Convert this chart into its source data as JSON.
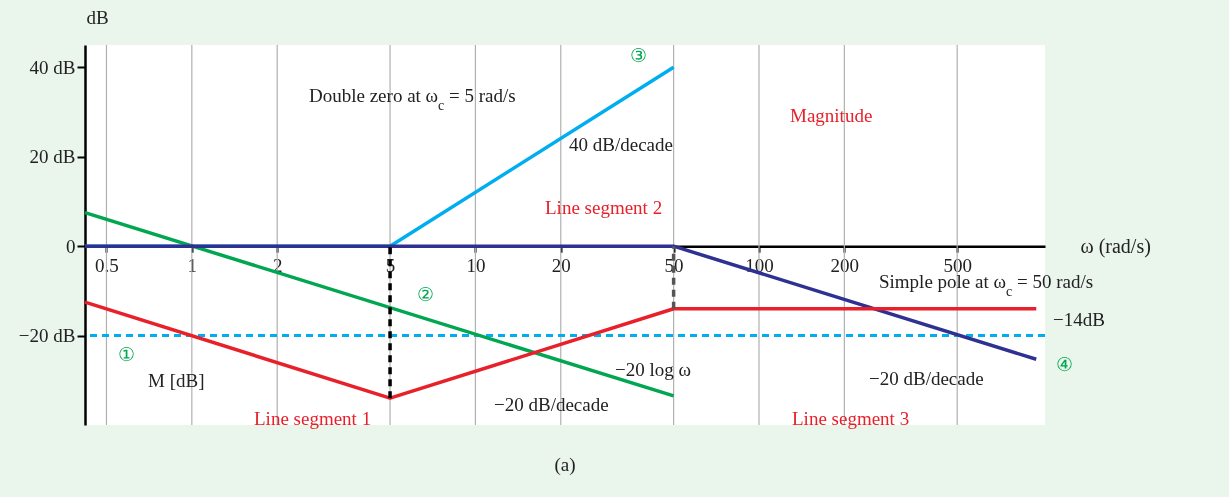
{
  "chart_data": {
    "type": "line",
    "xlabel": "ω (rad/s)",
    "ylabel": "dB",
    "log": "x",
    "series": [
      {
        "color": "#00aeef",
        "x": [
          0.42,
          5,
          50
        ],
        "values": [
          0,
          0,
          40
        ]
      },
      {
        "color": "#00a650",
        "x": [
          0.42,
          50
        ],
        "values": [
          7.5,
          -33.5
        ]
      },
      {
        "color": "#2e3192",
        "x": [
          0.42,
          50,
          950
        ],
        "values": [
          0,
          0,
          -25.3
        ]
      },
      {
        "color": "#e8202a",
        "x": [
          0.42,
          5,
          50,
          950
        ],
        "values": [
          -12.5,
          -34,
          -14,
          -14
        ]
      },
      {
        "color": "#000000",
        "x": [
          5,
          5
        ],
        "values": [
          -34,
          0
        ],
        "line_style": "dashed"
      },
      {
        "color": "#555555",
        "x": [
          50,
          50
        ],
        "values": [
          -14,
          0
        ],
        "line_style": "dashed"
      }
    ],
    "xlim": [
      0.42,
      1020
    ],
    "xticks": [
      0.5,
      1,
      2,
      5,
      10,
      20,
      50,
      100,
      200,
      500
    ],
    "ylim": [
      -40,
      45
    ],
    "yticks": [
      {
        "value": 40,
        "label": "40 dB"
      },
      {
        "value": 20,
        "label": "20 dB"
      },
      {
        "value": 0,
        "label": "0"
      },
      {
        "value": -20,
        "label": "−20 dB"
      }
    ],
    "grid": "x",
    "marker": "none",
    "ref_lines": [
      {
        "axis": "y",
        "value": -20,
        "color": "#00aeef",
        "line_style": "dashed"
      }
    ],
    "annotations": [
      "Double zero at ω$_{c}$ = 5 rad/s",
      "40 dB/decade",
      "Magnitude",
      "Line segment 2",
      "Simple pole at ω$_{c}$ = 50 rad/s",
      "−14dB",
      "M [dB]",
      "Line segment 1",
      "−20 dB/decade",
      "−20 log ω",
      "Line segment 3",
      "−20 dB/decade",
      "①",
      "②",
      "③",
      "④",
      "(a)"
    ]
  }
}
